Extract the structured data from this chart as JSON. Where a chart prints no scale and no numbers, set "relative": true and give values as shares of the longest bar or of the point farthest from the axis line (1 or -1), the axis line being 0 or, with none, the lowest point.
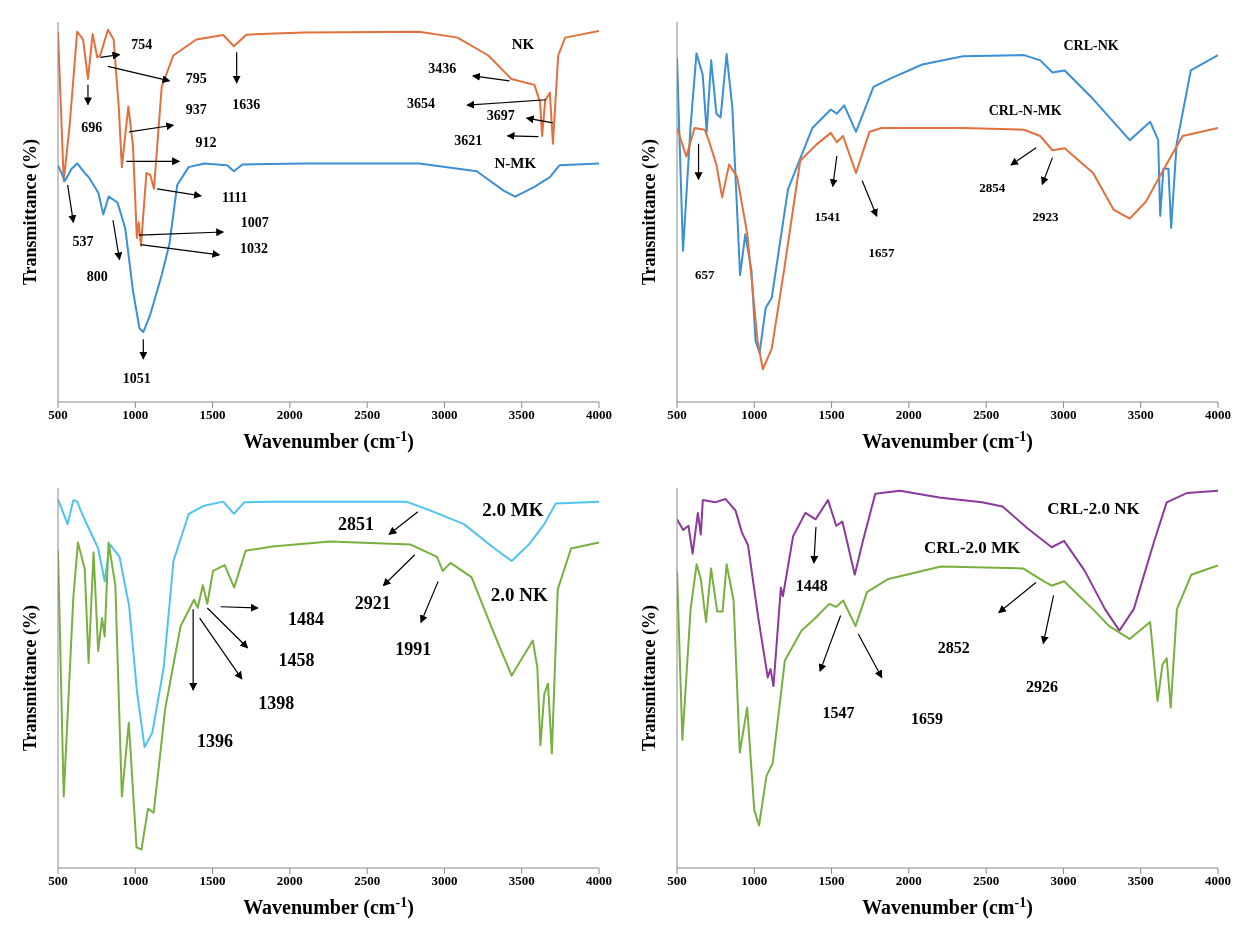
{
  "chart_data": [
    {
      "type": "line",
      "xlabel": "Wavenumber (cm$^{-1}$)",
      "ylabel": "Transmittance (%)",
      "relative": true,
      "xlim": [
        500,
        4000
      ],
      "xticks": [
        500,
        1000,
        1500,
        2000,
        2500,
        3000,
        3500,
        4000
      ],
      "series": [
        {
          "name": "NK",
          "color": "#e2703c",
          "x": [
            500,
            537,
            575,
            624,
            662,
            694,
            724,
            754,
            773,
            823,
            860,
            893,
            913,
            955,
            985,
            1010,
            1022,
            1037,
            1072,
            1097,
            1121,
            1171,
            1246,
            1395,
            1569,
            1638,
            1718,
            2091,
            2837,
            3085,
            3284,
            3433,
            3582,
            3619,
            3632,
            3652,
            3682,
            3702,
            3736,
            3781,
            4000
          ],
          "values": [
            0.995,
            0.594,
            0.742,
            0.995,
            0.974,
            0.868,
            0.989,
            0.926,
            0.931,
            1.0,
            0.974,
            0.794,
            0.631,
            0.794,
            0.689,
            0.441,
            0.483,
            0.42,
            0.615,
            0.61,
            0.573,
            0.847,
            0.931,
            0.974,
            0.986,
            0.956,
            0.987,
            0.993,
            0.995,
            0.979,
            0.931,
            0.868,
            0.852,
            0.805,
            0.715,
            0.81,
            0.831,
            0.694,
            0.931,
            0.979,
            0.997
          ]
        },
        {
          "name": "N-MK",
          "color": "#3b8fd4",
          "x": [
            500,
            545,
            587,
            624,
            674,
            699,
            761,
            793,
            828,
            885,
            935,
            985,
            1027,
            1052,
            1097,
            1171,
            1221,
            1271,
            1345,
            1445,
            1594,
            1638,
            1693,
            2091,
            2837,
            3209,
            3383,
            3458,
            3582,
            3682,
            3744,
            4000
          ],
          "values": [
            0.636,
            0.594,
            0.626,
            0.641,
            0.615,
            0.604,
            0.562,
            0.504,
            0.552,
            0.536,
            0.467,
            0.299,
            0.198,
            0.188,
            0.235,
            0.341,
            0.425,
            0.583,
            0.631,
            0.641,
            0.636,
            0.62,
            0.638,
            0.641,
            0.641,
            0.62,
            0.568,
            0.552,
            0.578,
            0.604,
            0.636,
            0.641
          ]
        }
      ],
      "annotations": [
        "754",
        "795",
        "696",
        "1636",
        "937",
        "912",
        "1111",
        "537",
        "1007",
        "1032",
        "800",
        "1051",
        "3436",
        "3654",
        "3697",
        "3621"
      ]
    },
    {
      "type": "line",
      "xlabel": "Wavenumber (cm$^{-1}$)",
      "ylabel": "Transmittance (%)",
      "relative": true,
      "xlim": [
        500,
        4000
      ],
      "xticks": [
        500,
        1000,
        1500,
        2000,
        2500,
        3000,
        3500,
        4000
      ],
      "series": [
        {
          "name": "CRL-NK",
          "color": "#3b8fd4",
          "x": [
            500,
            539,
            587,
            626,
            666,
            692,
            721,
            755,
            782,
            821,
            858,
            908,
            942,
            982,
            1008,
            1034,
            1074,
            1113,
            1218,
            1376,
            1495,
            1534,
            1582,
            1658,
            1771,
            1876,
            2087,
            2350,
            2745,
            2850,
            2929,
            3008,
            3192,
            3429,
            3561,
            3613,
            3626,
            3647,
            3679,
            3697,
            3732,
            3824,
            4000
          ],
          "values": [
            0.986,
            0.434,
            0.786,
            1.0,
            0.939,
            0.775,
            0.98,
            0.827,
            0.816,
            0.998,
            0.845,
            0.364,
            0.481,
            0.376,
            0.176,
            0.141,
            0.27,
            0.299,
            0.61,
            0.786,
            0.839,
            0.827,
            0.851,
            0.775,
            0.904,
            0.927,
            0.968,
            0.992,
            0.995,
            0.98,
            0.945,
            0.951,
            0.869,
            0.751,
            0.804,
            0.751,
            0.534,
            0.669,
            0.669,
            0.499,
            0.739,
            0.951,
            0.995
          ]
        },
        {
          "name": "CRL-N-MK",
          "color": "#e2703c",
          "x": [
            500,
            561,
            613,
            679,
            705,
            755,
            792,
            837,
            889,
            955,
            1021,
            1055,
            1113,
            1192,
            1297,
            1403,
            1495,
            1534,
            1574,
            1658,
            1745,
            1824,
            2350,
            2745,
            2850,
            2929,
            3008,
            3192,
            3324,
            3429,
            3534,
            3666,
            3771,
            4000
          ],
          "values": [
            0.786,
            0.704,
            0.786,
            0.781,
            0.751,
            0.681,
            0.587,
            0.681,
            0.646,
            0.481,
            0.176,
            0.094,
            0.153,
            0.376,
            0.692,
            0.739,
            0.772,
            0.745,
            0.763,
            0.657,
            0.775,
            0.786,
            0.786,
            0.781,
            0.763,
            0.722,
            0.728,
            0.657,
            0.552,
            0.526,
            0.575,
            0.681,
            0.763,
            0.786
          ]
        }
      ],
      "annotations": [
        "657",
        "1541",
        "1657",
        "2854",
        "2923"
      ]
    },
    {
      "type": "line",
      "xlabel": "Wavenumber (cm$^{-1}$)",
      "ylabel": "Transmittance (%)",
      "relative": true,
      "xlim": [
        500,
        4000
      ],
      "xticks": [
        500,
        1000,
        1500,
        2000,
        2500,
        3000,
        3500,
        4000
      ],
      "series": [
        {
          "name": "2.0 MK",
          "color": "#4fc3f0",
          "x": [
            500,
            562,
            599,
            624,
            661,
            711,
            760,
            802,
            836,
            898,
            960,
            1011,
            1060,
            1110,
            1184,
            1247,
            1346,
            1445,
            1569,
            1638,
            1705,
            1891,
            2754,
            2927,
            3126,
            3324,
            3435,
            3547,
            3646,
            3720,
            4000
          ],
          "values": [
            1.0,
            0.933,
            0.998,
            0.994,
            0.956,
            0.911,
            0.867,
            0.778,
            0.878,
            0.844,
            0.711,
            0.478,
            0.328,
            0.367,
            0.544,
            0.833,
            0.961,
            0.983,
            0.994,
            0.961,
            0.992,
            0.994,
            0.994,
            0.967,
            0.933,
            0.867,
            0.833,
            0.878,
            0.933,
            0.989,
            0.994
          ]
        },
        {
          "name": "2.0 NK",
          "color": "#78b040",
          "x": [
            500,
            537,
            599,
            629,
            673,
            698,
            730,
            760,
            785,
            802,
            827,
            871,
            913,
            958,
            1008,
            1040,
            1082,
            1119,
            1194,
            1293,
            1380,
            1404,
            1437,
            1466,
            1503,
            1578,
            1640,
            1714,
            1887,
            2259,
            2779,
            2952,
            2989,
            3039,
            3175,
            3324,
            3435,
            3572,
            3601,
            3621,
            3646,
            3670,
            3695,
            3733,
            3819,
            4000
          ],
          "values": [
            0.861,
            0.194,
            0.733,
            0.883,
            0.811,
            0.556,
            0.856,
            0.589,
            0.678,
            0.628,
            0.883,
            0.767,
            0.194,
            0.394,
            0.056,
            0.05,
            0.161,
            0.15,
            0.433,
            0.656,
            0.728,
            0.706,
            0.767,
            0.717,
            0.806,
            0.822,
            0.761,
            0.861,
            0.872,
            0.886,
            0.878,
            0.844,
            0.806,
            0.828,
            0.789,
            0.633,
            0.522,
            0.617,
            0.544,
            0.333,
            0.472,
            0.5,
            0.311,
            0.756,
            0.867,
            0.883
          ]
        }
      ],
      "annotations": [
        "2851",
        "2921",
        "1991",
        "1484",
        "1458",
        "1398",
        "1396"
      ]
    },
    {
      "type": "line",
      "xlabel": "Wavenumber (cm$^{-1}$)",
      "ylabel": "Transmittance (%)",
      "relative": true,
      "xlim": [
        500,
        4000
      ],
      "xticks": [
        500,
        1000,
        1500,
        2000,
        2500,
        3000,
        3500,
        4000
      ],
      "series": [
        {
          "name": "CRL-2.0 NK",
          "color": "#8b3a9b",
          "x": [
            500,
            540,
            574,
            601,
            635,
            654,
            667,
            747,
            813,
            879,
            919,
            959,
            1026,
            1087,
            1105,
            1124,
            1172,
            1185,
            1251,
            1331,
            1397,
            1477,
            1530,
            1570,
            1650,
            1703,
            1783,
            1942,
            2207,
            2473,
            2606,
            2765,
            2924,
            3004,
            3137,
            3269,
            3362,
            3455,
            3588,
            3668,
            3801,
            4000
          ],
          "values": [
            0.924,
            0.896,
            0.907,
            0.833,
            0.941,
            0.884,
            0.975,
            0.969,
            0.978,
            0.947,
            0.89,
            0.856,
            0.663,
            0.505,
            0.527,
            0.482,
            0.743,
            0.72,
            0.879,
            0.941,
            0.924,
            0.975,
            0.907,
            0.918,
            0.777,
            0.867,
            0.992,
            1.0,
            0.981,
            0.969,
            0.958,
            0.901,
            0.85,
            0.867,
            0.788,
            0.686,
            0.629,
            0.686,
            0.867,
            0.969,
            0.994,
            1.0
          ]
        },
        {
          "name": "CRL-2.0 MK",
          "color": "#78b040",
          "x": [
            500,
            535,
            588,
            627,
            654,
            688,
            720,
            760,
            795,
            821,
            866,
            906,
            954,
            1000,
            1031,
            1079,
            1119,
            1198,
            1305,
            1397,
            1485,
            1530,
            1575,
            1655,
            1729,
            1862,
            2207,
            2739,
            2871,
            2924,
            3004,
            3190,
            3296,
            3428,
            3561,
            3609,
            3641,
            3668,
            3694,
            3734,
            3827,
            4000
          ],
          "values": [
            0.788,
            0.34,
            0.686,
            0.805,
            0.766,
            0.652,
            0.794,
            0.68,
            0.68,
            0.805,
            0.709,
            0.306,
            0.425,
            0.153,
            0.113,
            0.244,
            0.278,
            0.55,
            0.629,
            0.663,
            0.7,
            0.692,
            0.709,
            0.641,
            0.731,
            0.765,
            0.799,
            0.794,
            0.76,
            0.748,
            0.76,
            0.686,
            0.641,
            0.607,
            0.652,
            0.442,
            0.539,
            0.556,
            0.425,
            0.686,
            0.777,
            0.802
          ]
        }
      ],
      "annotations": [
        "1448",
        "1547",
        "1659",
        "2852",
        "2926"
      ]
    }
  ]
}
